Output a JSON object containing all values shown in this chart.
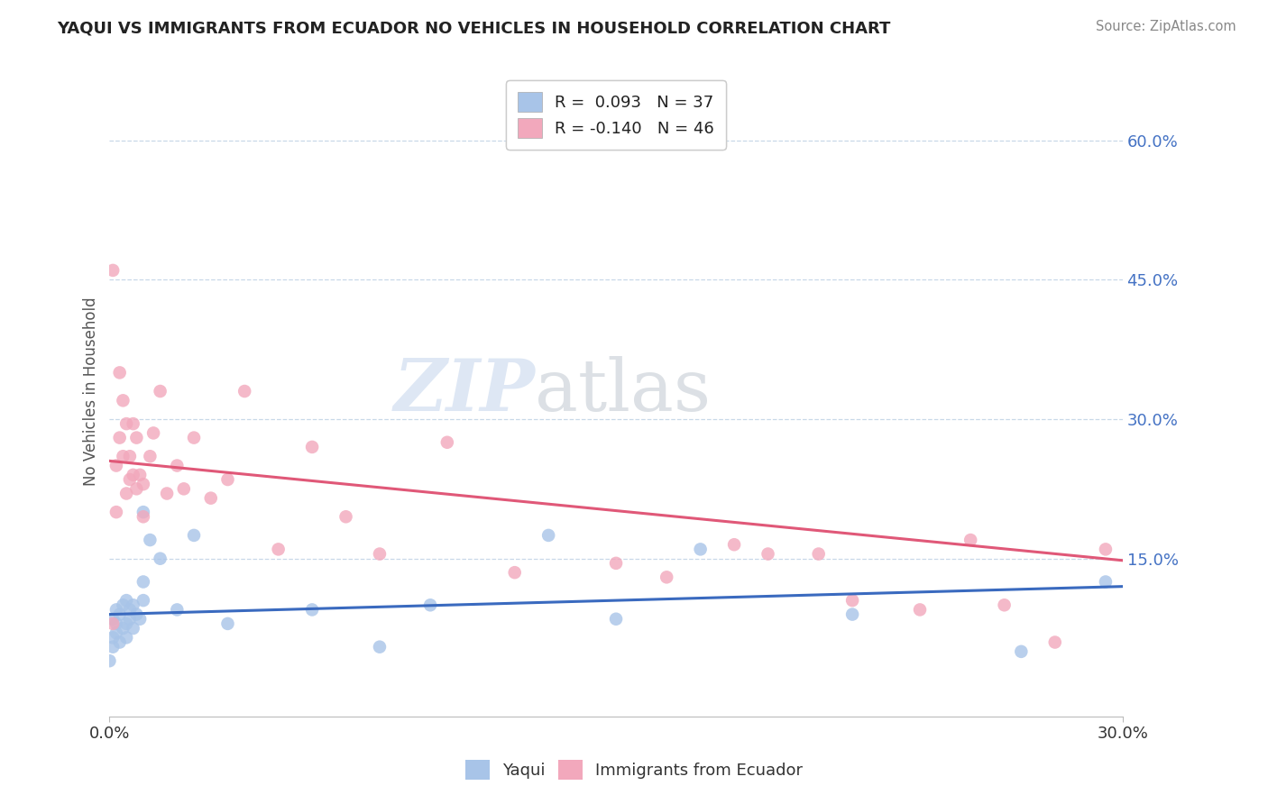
{
  "title": "YAQUI VS IMMIGRANTS FROM ECUADOR NO VEHICLES IN HOUSEHOLD CORRELATION CHART",
  "source": "Source: ZipAtlas.com",
  "ylabel": "No Vehicles in Household",
  "ylabel_right_ticks": [
    "60.0%",
    "45.0%",
    "30.0%",
    "15.0%"
  ],
  "ylabel_right_vals": [
    0.6,
    0.45,
    0.3,
    0.15
  ],
  "xlim": [
    0.0,
    0.3
  ],
  "ylim": [
    -0.02,
    0.68
  ],
  "legend1_label": "R =  0.093   N = 37",
  "legend2_label": "R = -0.140   N = 46",
  "color_blue": "#a8c4e8",
  "color_pink": "#f2a8bc",
  "line_blue": "#3a6abf",
  "line_pink": "#e05878",
  "blue_x": [
    0.0,
    0.001,
    0.001,
    0.001,
    0.002,
    0.002,
    0.002,
    0.003,
    0.003,
    0.004,
    0.004,
    0.005,
    0.005,
    0.005,
    0.006,
    0.006,
    0.007,
    0.007,
    0.008,
    0.009,
    0.01,
    0.01,
    0.01,
    0.012,
    0.015,
    0.02,
    0.025,
    0.035,
    0.06,
    0.08,
    0.095,
    0.13,
    0.15,
    0.175,
    0.22,
    0.27,
    0.295
  ],
  "blue_y": [
    0.04,
    0.055,
    0.065,
    0.085,
    0.07,
    0.08,
    0.095,
    0.06,
    0.09,
    0.075,
    0.1,
    0.065,
    0.08,
    0.105,
    0.085,
    0.095,
    0.075,
    0.1,
    0.09,
    0.085,
    0.105,
    0.125,
    0.2,
    0.17,
    0.15,
    0.095,
    0.175,
    0.08,
    0.095,
    0.055,
    0.1,
    0.175,
    0.085,
    0.16,
    0.09,
    0.05,
    0.125
  ],
  "pink_x": [
    0.001,
    0.001,
    0.002,
    0.002,
    0.003,
    0.003,
    0.004,
    0.004,
    0.005,
    0.005,
    0.006,
    0.006,
    0.007,
    0.007,
    0.008,
    0.008,
    0.009,
    0.01,
    0.01,
    0.012,
    0.013,
    0.015,
    0.017,
    0.02,
    0.022,
    0.025,
    0.03,
    0.035,
    0.04,
    0.05,
    0.06,
    0.07,
    0.08,
    0.1,
    0.12,
    0.15,
    0.165,
    0.185,
    0.195,
    0.21,
    0.22,
    0.24,
    0.255,
    0.265,
    0.28,
    0.295
  ],
  "pink_y": [
    0.46,
    0.08,
    0.2,
    0.25,
    0.28,
    0.35,
    0.26,
    0.32,
    0.22,
    0.295,
    0.26,
    0.235,
    0.295,
    0.24,
    0.225,
    0.28,
    0.24,
    0.23,
    0.195,
    0.26,
    0.285,
    0.33,
    0.22,
    0.25,
    0.225,
    0.28,
    0.215,
    0.235,
    0.33,
    0.16,
    0.27,
    0.195,
    0.155,
    0.275,
    0.135,
    0.145,
    0.13,
    0.165,
    0.155,
    0.155,
    0.105,
    0.095,
    0.17,
    0.1,
    0.06,
    0.16
  ],
  "blue_line_x0": 0.0,
  "blue_line_y0": 0.09,
  "blue_line_x1": 0.3,
  "blue_line_y1": 0.12,
  "pink_line_x0": 0.0,
  "pink_line_y0": 0.255,
  "pink_line_x1": 0.3,
  "pink_line_y1": 0.148
}
